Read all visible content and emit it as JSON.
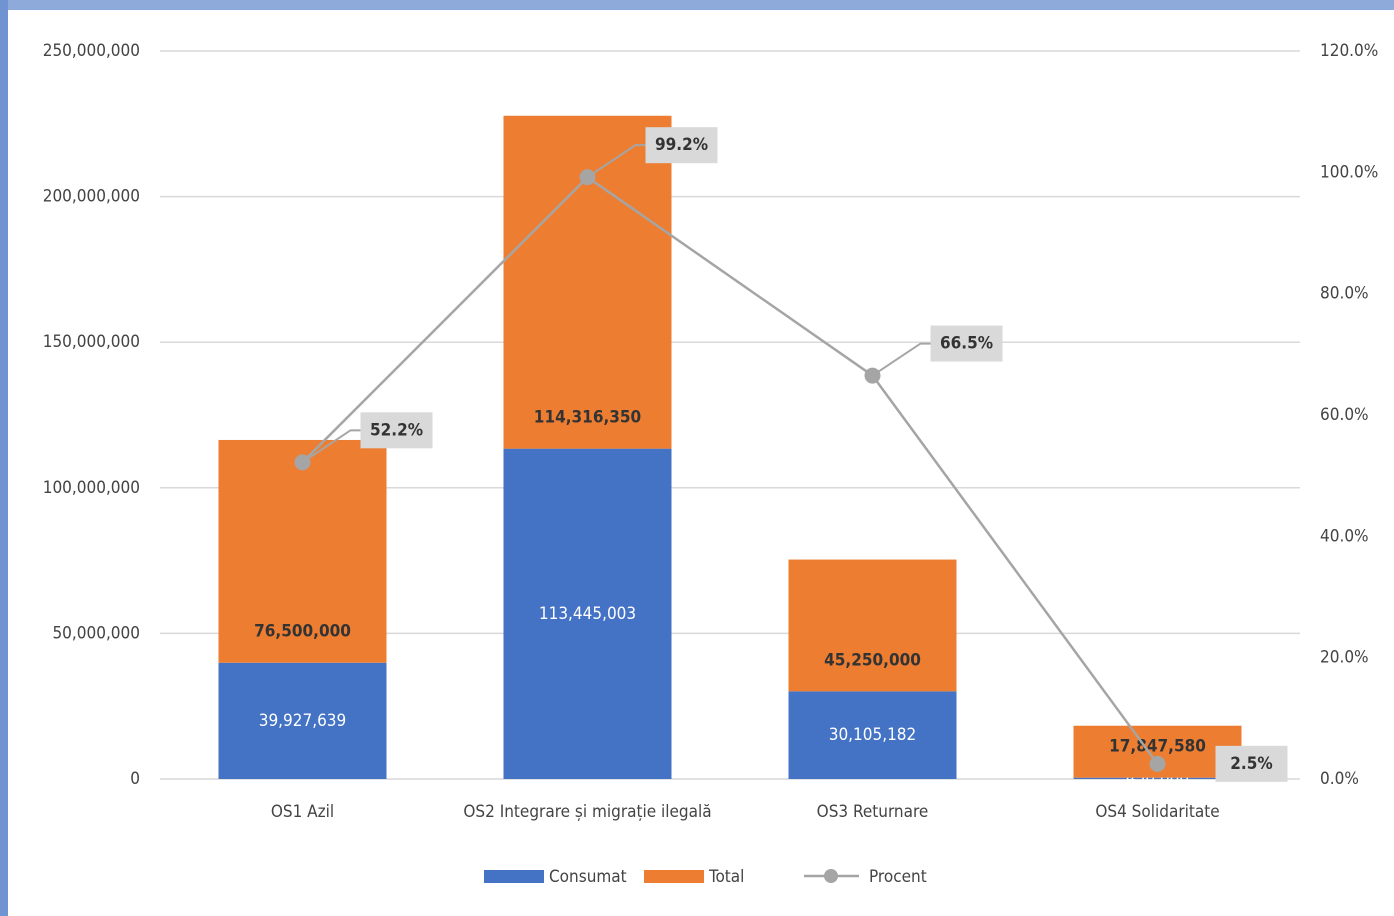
{
  "chart_data": {
    "type": "bar",
    "categories": [
      "OS1 Azil",
      "OS2 Integrare și migrație ilegală",
      "OS3 Returnare",
      "OS4 Solidaritate"
    ],
    "stacked": true,
    "series": [
      {
        "name": "Consumat",
        "color": "#4472c4",
        "values": [
          39927639,
          113445003,
          30105182,
          450000
        ],
        "value_labels": [
          "39,927,639",
          "113,445,003",
          "30,105,182",
          "450,000"
        ]
      },
      {
        "name": "Total",
        "color": "#ed7d31",
        "values": [
          76500000,
          114316350,
          45250000,
          17847580
        ],
        "value_labels": [
          "76,500,000",
          "114,316,350",
          "45,250,000",
          "17,847,580"
        ]
      },
      {
        "name": "Procent",
        "type": "line",
        "axis": "y2",
        "color": "#a5a5a5",
        "values": [
          52.2,
          99.2,
          66.5,
          2.5
        ],
        "value_labels": [
          "52.2%",
          "99.2%",
          "66.5%",
          "2.5%"
        ]
      }
    ],
    "ylim": [
      0,
      250000000
    ],
    "yticks": [
      {
        "value": 0,
        "label": "0"
      },
      {
        "value": 50000000,
        "label": "50,000,000"
      },
      {
        "value": 100000000,
        "label": "100,000,000"
      },
      {
        "value": 150000000,
        "label": "150,000,000"
      },
      {
        "value": 200000000,
        "label": "200,000,000"
      },
      {
        "value": 250000000,
        "label": "250,000,000"
      }
    ],
    "y2lim": [
      0,
      120
    ],
    "y2ticks": [
      {
        "value": 0,
        "label": "0.0%"
      },
      {
        "value": 20,
        "label": "20.0%"
      },
      {
        "value": 40,
        "label": "40.0%"
      },
      {
        "value": 60,
        "label": "60.0%"
      },
      {
        "value": 80,
        "label": "80.0%"
      },
      {
        "value": 100,
        "label": "100.0%"
      },
      {
        "value": 120,
        "label": "120.0%"
      }
    ],
    "grid": true,
    "legend": "bottom"
  }
}
